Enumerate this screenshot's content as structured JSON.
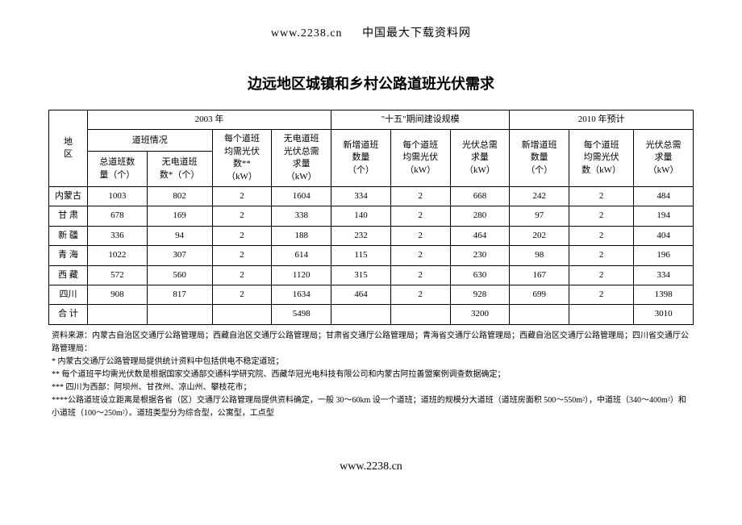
{
  "header": {
    "url": "www.2238.cn",
    "site_name": "中国最大下载资料网"
  },
  "title": "边远地区城镇和乡村公路道班光伏需求",
  "table": {
    "header": {
      "region": "地\n区",
      "group_2003": "2003 年",
      "group_15th": "\"十五\"期间建设规模",
      "group_2010": "2010 年预计",
      "sub_daoban": "道班情况",
      "col_total_count": "总道班数\n量（个）",
      "col_noelec_count": "无电道班\n数*（个）",
      "col_avg_pv_2003": "每个道班\n均需光伏\n数**\n（kW）",
      "col_total_pv_2003": "无电道班\n光伏总需\n求量\n（kW）",
      "col_new_count_15": "新增道班\n数量\n（个）",
      "col_avg_pv_15": "每个道班\n均需光伏\n（kW）",
      "col_total_pv_15": "光伏总需\n求量\n（kW）",
      "col_new_count_10": "新增道班\n数量\n（个）",
      "col_avg_pv_10": "每个道班\n均需光伏\n数（kW）",
      "col_total_pv_10": "光伏总需\n求量\n（kW）"
    },
    "rows": [
      {
        "region": "内蒙古",
        "c1": "1003",
        "c2": "802",
        "c3": "2",
        "c4": "1604",
        "c5": "334",
        "c6": "2",
        "c7": "668",
        "c8": "242",
        "c9": "2",
        "c10": "484"
      },
      {
        "region": "甘 肃",
        "c1": "678",
        "c2": "169",
        "c3": "2",
        "c4": "338",
        "c5": "140",
        "c6": "2",
        "c7": "280",
        "c8": "97",
        "c9": "2",
        "c10": "194"
      },
      {
        "region": "新 疆",
        "c1": "336",
        "c2": "94",
        "c3": "2",
        "c4": "188",
        "c5": "232",
        "c6": "2",
        "c7": "464",
        "c8": "202",
        "c9": "2",
        "c10": "404"
      },
      {
        "region": "青 海",
        "c1": "1022",
        "c2": "307",
        "c3": "2",
        "c4": "614",
        "c5": "115",
        "c6": "2",
        "c7": "230",
        "c8": "98",
        "c9": "2",
        "c10": "196"
      },
      {
        "region": "西 藏",
        "c1": "572",
        "c2": "560",
        "c3": "2",
        "c4": "1120",
        "c5": "315",
        "c6": "2",
        "c7": "630",
        "c8": "167",
        "c9": "2",
        "c10": "334"
      },
      {
        "region": "四川",
        "c1": "908",
        "c2": "817",
        "c3": "2",
        "c4": "1634",
        "c5": "464",
        "c6": "2",
        "c7": "928",
        "c8": "699",
        "c9": "2",
        "c10": "1398"
      },
      {
        "region": "合 计",
        "c1": "",
        "c2": "",
        "c3": "",
        "c4": "5498",
        "c5": "",
        "c6": "",
        "c7": "3200",
        "c8": "",
        "c9": "",
        "c10": "3010"
      }
    ]
  },
  "footnotes": {
    "l1": "资料来源：内蒙古自治区交通厅公路管理局；西藏自治区交通厅公路管理局；甘肃省交通厅公路管理局；青海省交通厅公路管理局；西藏自治区交通厅公路管理局；四川省交通厅公路管理局：",
    "l2": "* 内蒙古交通厅公路管理局提供统计资料中包括供电不稳定道班；",
    "l3": "** 每个道班平均需光伏数是根据国家交通部交通科学研究院、西藏华冠光电科技有限公司和内蒙古阿拉善盟案例调查数据确定；",
    "l4": "*** 四川为西部：阿坝州、甘孜州、凉山州、攀枝花市；",
    "l5": "****公路道班设立距离是根据各省（区）交通厅公路管理局提供资料确定，一般 30～60km 设一个道班；道班的规模分大道班（道班房面积 500～550m²），中道班（340～400m²）和小道班（100～250m²）。道班类型分为综合型，公寓型，工点型"
  },
  "footer_url": "www.2238.cn"
}
